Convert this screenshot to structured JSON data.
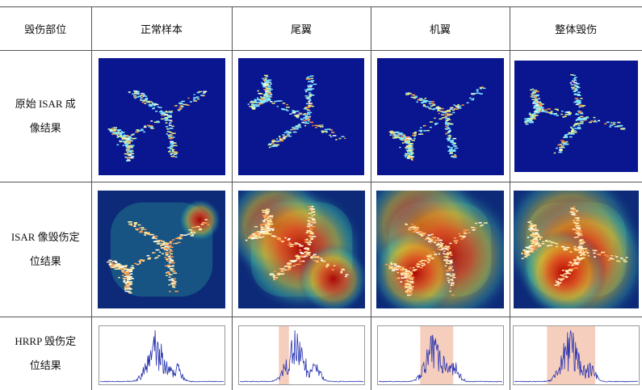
{
  "table": {
    "header": [
      "毁伤部位",
      "正常样本",
      "尾翼",
      "机翼",
      "整体毁伤"
    ],
    "rows": [
      {
        "label": "原始 ISAR 成像结果"
      },
      {
        "label": "ISAR 像毁伤定位结果"
      },
      {
        "label": "HRRP 毁伤定位结果"
      }
    ]
  }
}
